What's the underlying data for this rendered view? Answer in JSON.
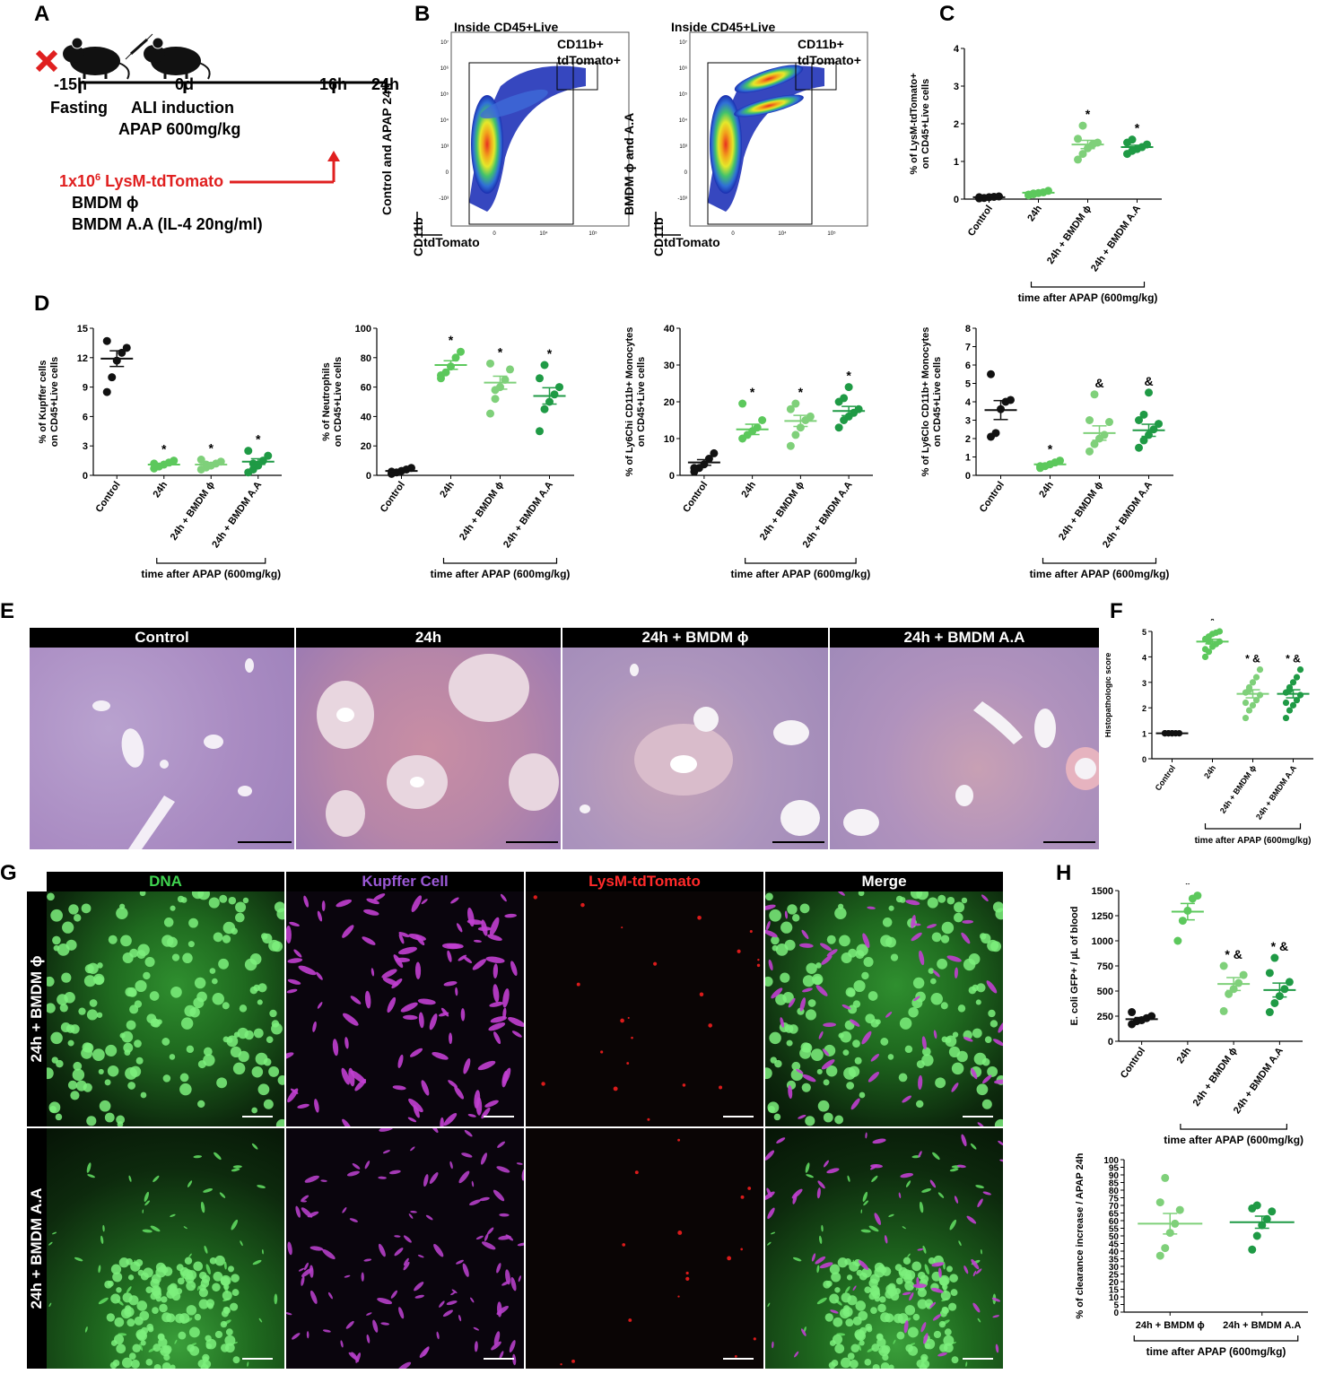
{
  "panels": {
    "A": "A",
    "B": "B",
    "C": "C",
    "D": "D",
    "E": "E",
    "F": "F",
    "G": "G",
    "H": "H"
  },
  "panelA": {
    "timeline": [
      "-15h",
      "0d",
      "16h",
      "24h"
    ],
    "fasting": "Fasting",
    "ali1": "ALI induction",
    "ali2": "APAP 600mg/kg",
    "inj_prefix": "1x10",
    "inj_sup": "6",
    "inj_rest": " LysM-tdTomato",
    "bmdm1": "BMDM ϕ",
    "bmdm2": "BMDM A.A (IL-4 20ng/ml)"
  },
  "panelB": {
    "plots": [
      {
        "gate_title": "Inside CD45+Live",
        "ylabel": "Control and APAP 24h",
        "gate_label": "CD11b+ tdTomato+"
      },
      {
        "gate_title": "Inside CD45+Live",
        "ylabel": "BMDM ϕ and A.A",
        "gate_label": "CD11b+ tdTomato+"
      }
    ],
    "axis_y": "CD11b",
    "axis_x": "tdTomato",
    "ticks_y": [
      "10⁷",
      "10⁶",
      "10⁵",
      "10⁴",
      "10³",
      "0",
      "-10³"
    ],
    "ticks_x": [
      "0",
      "10⁴",
      "10⁵"
    ]
  },
  "colors": {
    "control": "#111111",
    "h24": "#5cc85c",
    "bmdm": "#7fd07a",
    "aa": "#1f9a45"
  },
  "group_bracket_label": "time after APAP (600mg/kg)",
  "chart_data": [
    {
      "id": "C",
      "type": "scatter",
      "ylabel": "% of LysM-tdTomato+ on CD45+Live cells",
      "ylim": [
        0,
        4
      ],
      "yticks": [
        0,
        1,
        2,
        3,
        4
      ],
      "categories": [
        "Control",
        "24h",
        "24h + BMDM ϕ",
        "24h + BMDM A.A"
      ],
      "means": [
        0.05,
        0.17,
        1.45,
        1.38
      ],
      "points": [
        [
          0.02,
          0.03,
          0.05,
          0.06,
          0.07,
          0.05
        ],
        [
          0.1,
          0.13,
          0.16,
          0.18,
          0.22,
          0.12,
          0.15
        ],
        [
          1.05,
          1.2,
          1.35,
          1.45,
          1.5,
          1.6,
          1.95
        ],
        [
          1.2,
          1.28,
          1.33,
          1.38,
          1.45,
          1.5,
          1.58
        ]
      ],
      "stars": [
        "",
        "",
        "*",
        "*"
      ]
    },
    {
      "id": "D1",
      "type": "scatter",
      "ylabel": "% of Kupffer cells on CD45+Live cells",
      "ylim": [
        0,
        15
      ],
      "yticks": [
        0,
        3,
        6,
        9,
        12,
        15
      ],
      "categories": [
        "Control",
        "24h",
        "24h + BMDM ϕ",
        "24h + BMDM A.A"
      ],
      "means": [
        11.9,
        1.1,
        1.1,
        1.4
      ],
      "points": [
        [
          8.5,
          10.0,
          11.7,
          12.5,
          13.0,
          13.7
        ],
        [
          0.7,
          0.9,
          1.1,
          1.3,
          1.5,
          1.2
        ],
        [
          0.6,
          0.8,
          1.0,
          1.2,
          1.4,
          1.6,
          1.1
        ],
        [
          0.3,
          0.6,
          1.0,
          1.5,
          2.0,
          2.5,
          1.2
        ]
      ],
      "stars": [
        "",
        "*",
        "*",
        "*"
      ]
    },
    {
      "id": "D2",
      "type": "scatter",
      "ylabel": "% of Neutrophils on CD45+Live cells",
      "ylim": [
        0,
        100
      ],
      "yticks": [
        0,
        20,
        40,
        60,
        80,
        100
      ],
      "categories": [
        "Control",
        "24h",
        "24h + BMDM ϕ",
        "24h + BMDM A.A"
      ],
      "means": [
        3.0,
        75,
        63,
        54
      ],
      "points": [
        [
          1,
          2,
          3,
          4,
          5,
          2.5
        ],
        [
          66,
          70,
          74,
          80,
          84,
          68
        ],
        [
          42,
          52,
          60,
          65,
          72,
          76,
          58
        ],
        [
          30,
          45,
          50,
          55,
          60,
          66,
          75
        ]
      ],
      "stars": [
        "",
        "*",
        "*",
        "*"
      ]
    },
    {
      "id": "D3",
      "type": "scatter",
      "ylabel": "% of Ly6Chi CD11b+ Monocytes on CD45+Live cells",
      "ylim": [
        0,
        40
      ],
      "yticks": [
        0,
        10,
        20,
        30,
        40
      ],
      "categories": [
        "Control",
        "24h",
        "24h + BMDM ϕ",
        "24h + BMDM A.A"
      ],
      "means": [
        3.5,
        12.5,
        14.8,
        17.5
      ],
      "points": [
        [
          1,
          2,
          3,
          4.5,
          6,
          2
        ],
        [
          10,
          11,
          12,
          13,
          15,
          19.5
        ],
        [
          8,
          11,
          13,
          15,
          16,
          18,
          19.5
        ],
        [
          13,
          15,
          16,
          17,
          18,
          20,
          21,
          24
        ]
      ],
      "stars": [
        "",
        "*",
        "*",
        "*"
      ]
    },
    {
      "id": "D4",
      "type": "scatter",
      "ylabel": "% of Ly6Clo CD11b+ Monocytes on CD45+Live cells",
      "ylim": [
        0,
        8
      ],
      "yticks": [
        0,
        1,
        2,
        3,
        4,
        5,
        6,
        7,
        8
      ],
      "categories": [
        "Control",
        "24h",
        "24h + BMDM ϕ",
        "24h + BMDM A.A"
      ],
      "means": [
        3.55,
        0.6,
        2.3,
        2.45
      ],
      "points": [
        [
          2.1,
          2.3,
          3.6,
          4.0,
          4.1,
          5.5
        ],
        [
          0.4,
          0.5,
          0.6,
          0.7,
          0.8,
          0.5
        ],
        [
          1.3,
          1.7,
          2.0,
          2.2,
          2.9,
          3.0,
          4.4
        ],
        [
          1.5,
          1.9,
          2.2,
          2.5,
          2.8,
          3.0,
          3.3,
          4.5
        ]
      ],
      "stars": [
        "",
        "*",
        "&",
        "&"
      ]
    },
    {
      "id": "F",
      "type": "scatter",
      "ylabel": "Histopathologic score",
      "ylim": [
        0,
        5
      ],
      "yticks": [
        0,
        1,
        2,
        3,
        4,
        5
      ],
      "categories": [
        "Control",
        "24h",
        "24h + BMDM ϕ",
        "24h + BMDM A.A"
      ],
      "means": [
        1.0,
        4.6,
        2.55,
        2.55
      ],
      "points": [
        [
          1,
          1,
          1,
          1,
          1,
          1,
          1,
          1
        ],
        [
          4.0,
          4.2,
          4.4,
          4.5,
          4.6,
          4.7,
          4.8,
          4.9,
          4.95,
          5.0,
          4.3,
          4.6
        ],
        [
          1.6,
          1.9,
          2.1,
          2.3,
          2.5,
          2.6,
          2.8,
          3.0,
          3.2,
          3.5,
          2.2,
          2.7
        ],
        [
          1.6,
          1.9,
          2.1,
          2.3,
          2.5,
          2.6,
          2.8,
          3.0,
          3.2,
          3.5,
          2.2,
          2.7
        ]
      ],
      "stars": [
        "",
        "*",
        "* &",
        "* &"
      ]
    },
    {
      "id": "H1",
      "type": "scatter",
      "ylabel": "E. coli GFP+ / µL of blood",
      "ylim": [
        0,
        1500
      ],
      "yticks": [
        0,
        250,
        500,
        750,
        1000,
        1250,
        1500
      ],
      "categories": [
        "Control",
        "24h",
        "24h + BMDM ϕ",
        "24h + BMDM A.A"
      ],
      "means": [
        220,
        1290,
        570,
        510
      ],
      "points": [
        [
          170,
          200,
          210,
          230,
          250,
          290
        ],
        [
          1000,
          1200,
          1300,
          1420,
          1450
        ],
        [
          300,
          470,
          520,
          580,
          660,
          750
        ],
        [
          290,
          380,
          450,
          520,
          590,
          680,
          830
        ]
      ],
      "stars": [
        "",
        "*",
        "* &",
        "* &"
      ]
    },
    {
      "id": "H2",
      "type": "scatter",
      "ylabel": "% of clearance increase / APAP 24h",
      "ylim": [
        0,
        100
      ],
      "yticks": [
        0,
        5,
        10,
        15,
        20,
        25,
        30,
        35,
        40,
        45,
        50,
        55,
        60,
        65,
        70,
        75,
        80,
        85,
        90,
        95,
        100
      ],
      "categories": [
        "24h + BMDM ϕ",
        "24h + BMDM A.A"
      ],
      "means": [
        58,
        59
      ],
      "points": [
        [
          37,
          42,
          52,
          58,
          67,
          72,
          88
        ],
        [
          41,
          50,
          57,
          61,
          66,
          68,
          70
        ]
      ],
      "stars": [
        "",
        ""
      ]
    }
  ],
  "panelE": {
    "headers": [
      "Control",
      "24h",
      "24h + BMDM ϕ",
      "24h + BMDM A.A"
    ]
  },
  "panelG": {
    "headers": [
      "DNA",
      "Kupffer Cell",
      "LysM-tdTomato",
      "Merge"
    ],
    "rows": [
      "24h + BMDM ϕ",
      "24h + BMDM A.A"
    ]
  }
}
